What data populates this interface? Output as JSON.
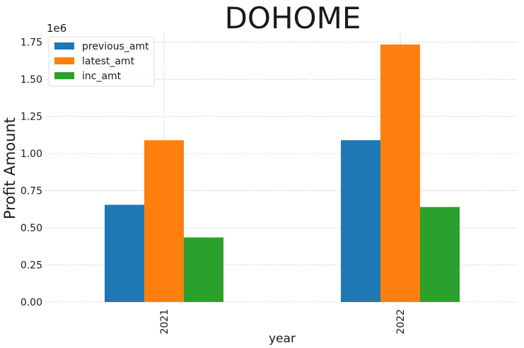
{
  "chart_data": {
    "type": "bar",
    "title": "DOHOME",
    "xlabel": "year",
    "ylabel": "Profit Amount",
    "y_offset_label": "1e6",
    "categories": [
      "2021",
      "2022"
    ],
    "series": [
      {
        "name": "previous_amt",
        "color": "#1f77b4",
        "values": [
          655000,
          1090000
        ]
      },
      {
        "name": "latest_amt",
        "color": "#ff7f0e",
        "values": [
          1090000,
          1735000
        ]
      },
      {
        "name": "inc_amt",
        "color": "#2ca02c",
        "values": [
          435000,
          640000
        ]
      }
    ],
    "y_ticks": [
      0,
      250000,
      500000,
      750000,
      1000000,
      1250000,
      1500000,
      1750000
    ],
    "y_tick_labels": [
      "0.00",
      "0.25",
      "0.50",
      "0.75",
      "1.00",
      "1.25",
      "1.50",
      "1.75"
    ],
    "ylim": [
      0,
      1820000
    ],
    "grid": true,
    "legend_position": "top-left"
  }
}
